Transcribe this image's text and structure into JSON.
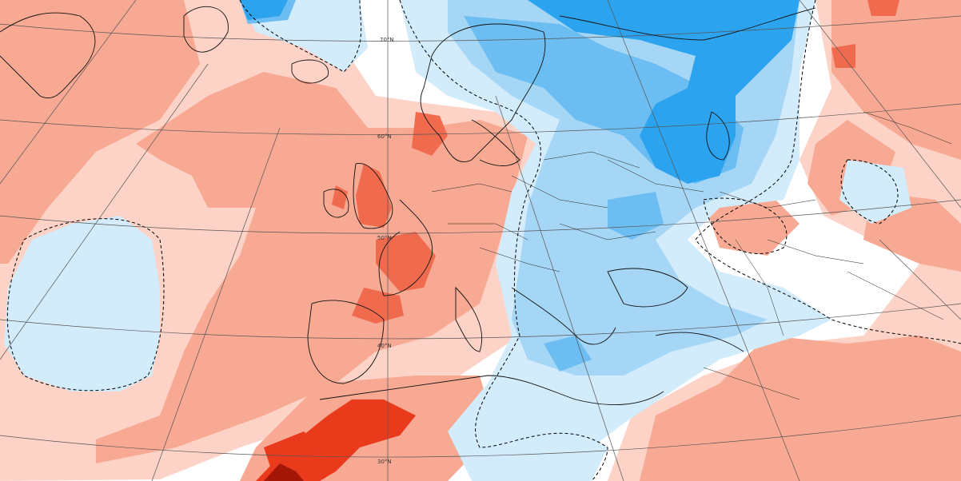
{
  "map": {
    "colors": {
      "background": "#ffffff",
      "anomaly_pos_1": "#fcd3c6",
      "anomaly_pos_2": "#f8a993",
      "anomaly_pos_3": "#f06a4e",
      "anomaly_pos_4": "#ea3a1c",
      "anomaly_pos_5": "#a31608",
      "anomaly_neg_1": "#d3ecfb",
      "anomaly_neg_2": "#a6d6f6",
      "anomaly_neg_3": "#6cbdf1",
      "anomaly_neg_4": "#2ba3ef",
      "coastline": "#111111",
      "border": "#222222",
      "graticule": "#555555",
      "zero_contour": "#000000"
    },
    "latitude_labels": [
      "70°N",
      "60°N",
      "50°N",
      "40°N",
      "30°N"
    ],
    "zero_contour_style": "dashed",
    "projection": "polar stereographic (Europe)"
  }
}
